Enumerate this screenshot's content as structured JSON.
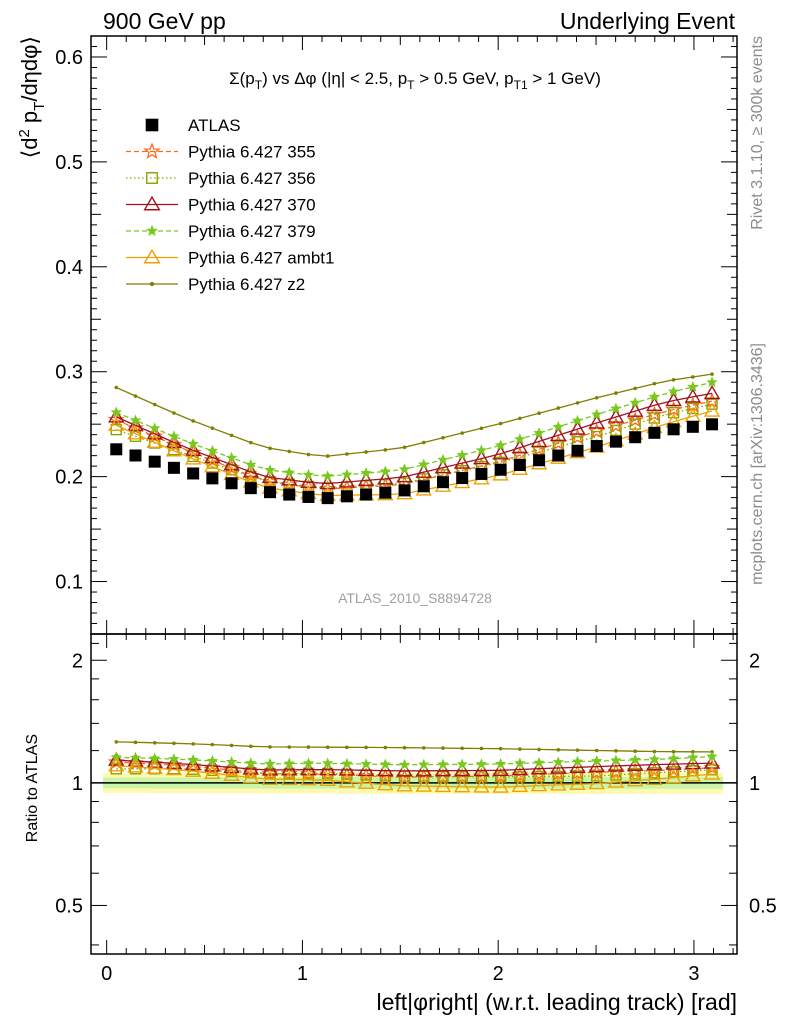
{
  "header": {
    "left": "900 GeV pp",
    "right": "Underlying Event"
  },
  "side_text": {
    "rivet": "Rivet 3.1.10, ≥ 300k events",
    "mcplots": "mcplots.cern.ch [arXiv:1306.3436]"
  },
  "watermark": "ATLAS_2010_S8894728",
  "chart_data": [
    {
      "type": "scatter",
      "panel": "main",
      "title": "Σ(pT) vs Δφ (|η| < 2.5, pT > 0.5 GeV, pT1 > 1 GeV)",
      "title_parts": {
        "a": "Σ(p",
        "sub1": "T",
        "b": ") vs Δφ (|η| < 2.5, p",
        "sub2": "T",
        "c": " > 0.5 GeV, p",
        "sub3": "T1",
        "d": " > 1 GeV)"
      },
      "ylabel": "⟨d² pT/dηdφ⟩",
      "ylabel_parts": {
        "a": "⟨d",
        "sup": "2",
        "b": " p",
        "sub": "T",
        "c": "/dηdφ⟩"
      },
      "xlim": [
        -0.08,
        3.22
      ],
      "ylim": [
        0.05,
        0.62
      ],
      "yticks": [
        "0.1",
        "0.2",
        "0.3",
        "0.4",
        "0.5",
        "0.6"
      ],
      "yticks_values": [
        0.1,
        0.2,
        0.3,
        0.4,
        0.5,
        0.6
      ],
      "legend_placement": "top-left",
      "legend": [
        {
          "label": "ATLAS",
          "color": "#000000",
          "marker": "square-filled",
          "line": "none"
        },
        {
          "label": "Pythia 6.427 355",
          "color": "#ff6a1a",
          "marker": "star",
          "line": "dashed"
        },
        {
          "label": "Pythia 6.427 356",
          "color": "#8aa400",
          "marker": "square-open",
          "line": "dotted"
        },
        {
          "label": "Pythia 6.427 370",
          "color": "#a0141e",
          "marker": "triangle-open",
          "line": "solid"
        },
        {
          "label": "Pythia 6.427 379",
          "color": "#78c81e",
          "marker": "star-filled",
          "line": "dashed"
        },
        {
          "label": "Pythia 6.427 ambt1",
          "color": "#f0a000",
          "marker": "triangle-open",
          "line": "solid"
        },
        {
          "label": "Pythia 6.427 z2",
          "color": "#7f7f00",
          "marker": "dot",
          "line": "solid"
        }
      ],
      "x_spec": {
        "bins": 32,
        "xmin": 0,
        "xmax": 3.14159
      },
      "series": [
        {
          "name": "ATLAS",
          "color": "#000000",
          "anchors": [
            [
              0,
              0.229
            ],
            [
              0.4,
              0.205
            ],
            [
              0.8,
              0.186
            ],
            [
              1.1,
              0.179
            ],
            [
              1.5,
              0.186
            ],
            [
              2.0,
              0.206
            ],
            [
              2.5,
              0.229
            ],
            [
              2.85,
              0.244
            ],
            [
              3.14,
              0.251
            ]
          ]
        },
        {
          "name": "Pythia 6.427 355",
          "color": "#ff6a1a",
          "anchors": [
            [
              0,
              0.258
            ],
            [
              0.4,
              0.226
            ],
            [
              0.8,
              0.196
            ],
            [
              1.1,
              0.188
            ],
            [
              1.5,
              0.192
            ],
            [
              2.0,
              0.214
            ],
            [
              2.5,
              0.243
            ],
            [
              2.85,
              0.262
            ],
            [
              3.14,
              0.274
            ]
          ]
        },
        {
          "name": "Pythia 6.427 356",
          "color": "#8aa400",
          "anchors": [
            [
              0,
              0.248
            ],
            [
              0.4,
              0.222
            ],
            [
              0.8,
              0.196
            ],
            [
              1.1,
              0.189
            ],
            [
              1.5,
              0.193
            ],
            [
              2.0,
              0.213
            ],
            [
              2.5,
              0.238
            ],
            [
              2.85,
              0.259
            ],
            [
              3.14,
              0.271
            ]
          ]
        },
        {
          "name": "Pythia 6.427 370",
          "color": "#a0141e",
          "anchors": [
            [
              0,
              0.261
            ],
            [
              0.4,
              0.228
            ],
            [
              0.8,
              0.2
            ],
            [
              1.1,
              0.193
            ],
            [
              1.5,
              0.199
            ],
            [
              2.0,
              0.221
            ],
            [
              2.5,
              0.251
            ],
            [
              2.85,
              0.271
            ],
            [
              3.14,
              0.281
            ]
          ]
        },
        {
          "name": "Pythia 6.427 379",
          "color": "#78c81e",
          "anchors": [
            [
              0,
              0.265
            ],
            [
              0.4,
              0.234
            ],
            [
              0.8,
              0.207
            ],
            [
              1.1,
              0.2
            ],
            [
              1.5,
              0.206
            ],
            [
              2.0,
              0.229
            ],
            [
              2.5,
              0.259
            ],
            [
              2.85,
              0.279
            ],
            [
              3.14,
              0.292
            ]
          ]
        },
        {
          "name": "Pythia 6.427 ambt1",
          "color": "#f0a000",
          "anchors": [
            [
              0,
              0.253
            ],
            [
              0.4,
              0.22
            ],
            [
              0.8,
              0.19
            ],
            [
              1.1,
              0.182
            ],
            [
              1.5,
              0.183
            ],
            [
              2.0,
              0.201
            ],
            [
              2.5,
              0.228
            ],
            [
              2.85,
              0.25
            ],
            [
              3.14,
              0.265
            ]
          ]
        },
        {
          "name": "Pythia 6.427 z2",
          "color": "#7f7f00",
          "anchors": [
            [
              0,
              0.289
            ],
            [
              0.4,
              0.256
            ],
            [
              0.8,
              0.228
            ],
            [
              1.1,
              0.219
            ],
            [
              1.5,
              0.227
            ],
            [
              2.0,
              0.25
            ],
            [
              2.5,
              0.275
            ],
            [
              2.85,
              0.291
            ],
            [
              3.14,
              0.299
            ]
          ]
        }
      ]
    },
    {
      "type": "scatter",
      "panel": "ratio",
      "ylabel": "Ratio to ATLAS",
      "xlabel": "left|φright| (w.r.t. leading track) [rad]",
      "xlim": [
        -0.08,
        3.22
      ],
      "ylim": [
        0.38,
        2.32
      ],
      "yscale": "log",
      "xticks": [
        "0",
        "1",
        "2",
        "3"
      ],
      "xticks_values": [
        0,
        1,
        2,
        3
      ],
      "yticks": [
        "0.5",
        "1",
        "2"
      ],
      "yticks_values": [
        0.5,
        1,
        2
      ],
      "reference_line": 1,
      "band_colors": [
        "#fff9b0",
        "#c9f5a8"
      ],
      "band_anchors": [
        [
          0,
          0.055
        ],
        [
          1.57,
          0.06
        ],
        [
          3.14,
          0.06
        ]
      ]
    }
  ]
}
